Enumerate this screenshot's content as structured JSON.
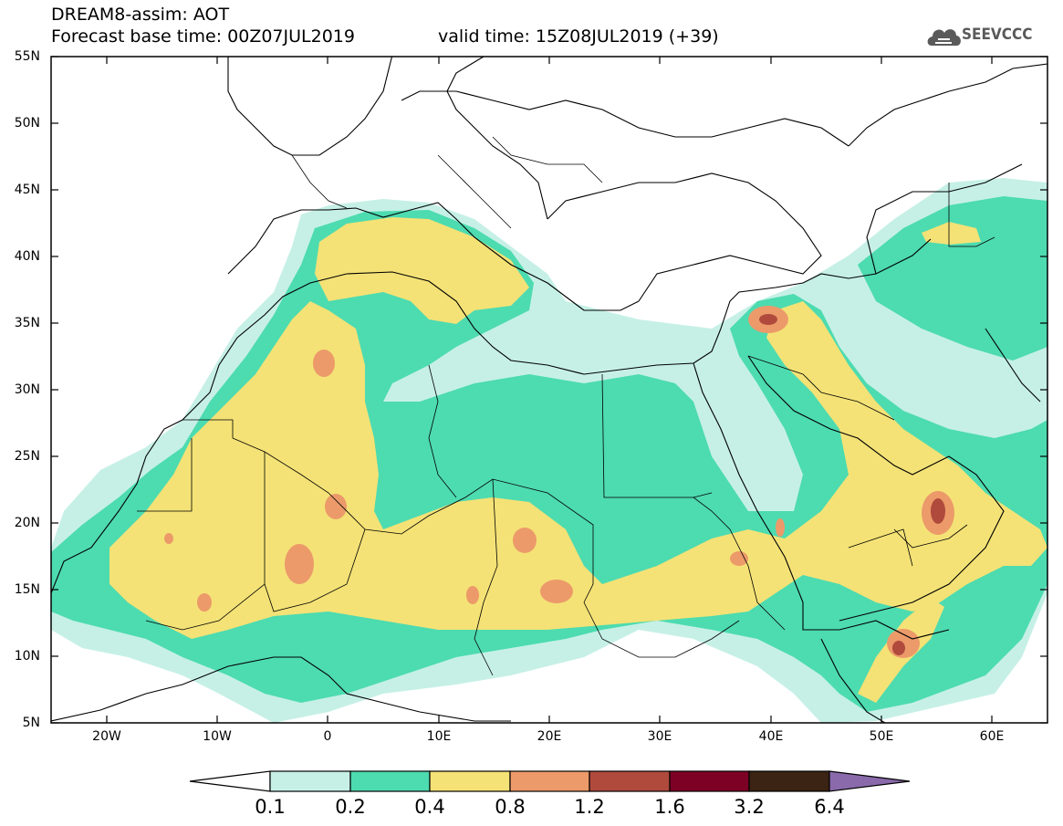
{
  "header": {
    "title_line1": "DREAM8-assim: AOT",
    "title_line2": "Forecast base time: 00Z07JUL2019",
    "valid_time": "valid time: 15Z08JUL2019 (+39)",
    "logo_text": "SEEVCCC",
    "logo_icon": "cloud-icon"
  },
  "map": {
    "lon_range": [
      -25,
      65
    ],
    "lat_range": [
      5,
      55
    ],
    "lat_labels": [
      "55N",
      "50N",
      "45N",
      "40N",
      "35N",
      "30N",
      "25N",
      "20N",
      "15N",
      "10N",
      "5N"
    ],
    "lon_labels": [
      "20W",
      "10W",
      "0",
      "10E",
      "20E",
      "30E",
      "40E",
      "50E",
      "60E"
    ]
  },
  "colorbar": {
    "labels": [
      "0.1",
      "0.2",
      "0.4",
      "0.8",
      "1.2",
      "1.6",
      "3.2",
      "6.4"
    ],
    "colors": [
      "#ffffff",
      "#c6f0e6",
      "#4ddbb0",
      "#f4e276",
      "#ec9a6a",
      "#b04a3c",
      "#7d0025",
      "#3b2413",
      "#8a6aab"
    ]
  }
}
